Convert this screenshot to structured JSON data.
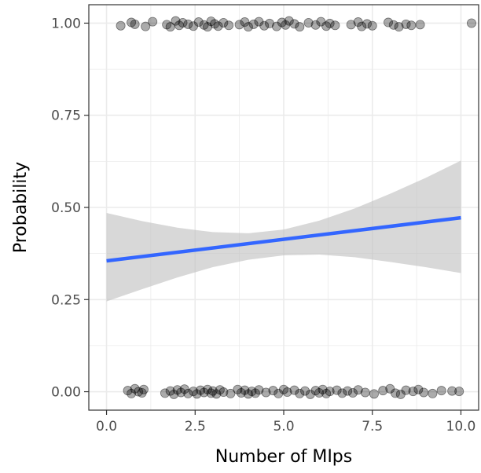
{
  "chart_data": {
    "type": "scatter",
    "title": "",
    "xlabel": "Number of MIps",
    "ylabel": "Probability",
    "xlim": [
      -0.5,
      10.5
    ],
    "ylim": [
      -0.05,
      1.05
    ],
    "x_ticks": [
      0,
      2.5,
      5,
      7.5,
      10
    ],
    "x_tick_labels": [
      "0.0",
      "2.5",
      "5.0",
      "7.5",
      "10.0"
    ],
    "y_ticks": [
      0,
      0.25,
      0.5,
      0.75,
      1
    ],
    "y_tick_labels": [
      "0.00",
      "0.25",
      "0.50",
      "0.75",
      "1.00"
    ],
    "grid": true,
    "legend": "none",
    "colors": {
      "points": "#000000",
      "trend_line": "#3366FF",
      "confidence_band": "#BEBEBE",
      "grid": "#EBEBEB",
      "border": "#333333"
    },
    "points": [
      {
        "x": 0.4,
        "y": 0.993
      },
      {
        "x": 0.7,
        "y": 1.002
      },
      {
        "x": 0.8,
        "y": 0.997
      },
      {
        "x": 1.1,
        "y": 0.991
      },
      {
        "x": 1.3,
        "y": 1.004
      },
      {
        "x": 1.7,
        "y": 0.996
      },
      {
        "x": 1.8,
        "y": 0.99
      },
      {
        "x": 1.95,
        "y": 1.006
      },
      {
        "x": 2.05,
        "y": 0.994
      },
      {
        "x": 2.15,
        "y": 1.001
      },
      {
        "x": 2.3,
        "y": 0.997
      },
      {
        "x": 2.45,
        "y": 0.992
      },
      {
        "x": 2.6,
        "y": 1.003
      },
      {
        "x": 2.75,
        "y": 0.995
      },
      {
        "x": 2.85,
        "y": 0.99
      },
      {
        "x": 2.95,
        "y": 1.005
      },
      {
        "x": 3.05,
        "y": 0.998
      },
      {
        "x": 3.15,
        "y": 0.992
      },
      {
        "x": 3.3,
        "y": 1.001
      },
      {
        "x": 3.45,
        "y": 0.994
      },
      {
        "x": 3.75,
        "y": 0.996
      },
      {
        "x": 3.9,
        "y": 1.003
      },
      {
        "x": 4.0,
        "y": 0.99
      },
      {
        "x": 4.15,
        "y": 0.997
      },
      {
        "x": 4.3,
        "y": 1.004
      },
      {
        "x": 4.45,
        "y": 0.993
      },
      {
        "x": 4.6,
        "y": 0.999
      },
      {
        "x": 4.8,
        "y": 0.991
      },
      {
        "x": 4.95,
        "y": 1.002
      },
      {
        "x": 5.05,
        "y": 0.995
      },
      {
        "x": 5.15,
        "y": 1.006
      },
      {
        "x": 5.3,
        "y": 0.998
      },
      {
        "x": 5.45,
        "y": 0.99
      },
      {
        "x": 5.7,
        "y": 1.001
      },
      {
        "x": 5.9,
        "y": 0.995
      },
      {
        "x": 6.05,
        "y": 1.004
      },
      {
        "x": 6.2,
        "y": 0.992
      },
      {
        "x": 6.3,
        "y": 0.999
      },
      {
        "x": 6.45,
        "y": 0.994
      },
      {
        "x": 6.9,
        "y": 0.996
      },
      {
        "x": 7.1,
        "y": 1.003
      },
      {
        "x": 7.2,
        "y": 0.991
      },
      {
        "x": 7.35,
        "y": 0.998
      },
      {
        "x": 7.5,
        "y": 0.993
      },
      {
        "x": 7.95,
        "y": 1.002
      },
      {
        "x": 8.1,
        "y": 0.995
      },
      {
        "x": 8.25,
        "y": 0.99
      },
      {
        "x": 8.45,
        "y": 0.997
      },
      {
        "x": 8.6,
        "y": 0.994
      },
      {
        "x": 8.85,
        "y": 0.996
      },
      {
        "x": 10.3,
        "y": 1.0
      },
      {
        "x": 0.6,
        "y": 0.003
      },
      {
        "x": 0.7,
        "y": -0.005
      },
      {
        "x": 0.8,
        "y": 0.008
      },
      {
        "x": 0.9,
        "y": 0.0
      },
      {
        "x": 1.0,
        "y": -0.003
      },
      {
        "x": 1.05,
        "y": 0.006
      },
      {
        "x": 1.65,
        "y": -0.004
      },
      {
        "x": 1.8,
        "y": 0.002
      },
      {
        "x": 1.9,
        "y": -0.007
      },
      {
        "x": 2.0,
        "y": 0.005
      },
      {
        "x": 2.1,
        "y": -0.002
      },
      {
        "x": 2.2,
        "y": 0.007
      },
      {
        "x": 2.3,
        "y": -0.005
      },
      {
        "x": 2.45,
        "y": 0.001
      },
      {
        "x": 2.55,
        "y": -0.006
      },
      {
        "x": 2.65,
        "y": 0.004
      },
      {
        "x": 2.75,
        "y": -0.002
      },
      {
        "x": 2.85,
        "y": 0.006
      },
      {
        "x": 2.95,
        "y": -0.004
      },
      {
        "x": 3.0,
        "y": 0.002
      },
      {
        "x": 3.1,
        "y": -0.006
      },
      {
        "x": 3.2,
        "y": 0.005
      },
      {
        "x": 3.3,
        "y": -0.001
      },
      {
        "x": 3.5,
        "y": -0.005
      },
      {
        "x": 3.7,
        "y": 0.006
      },
      {
        "x": 3.8,
        "y": -0.003
      },
      {
        "x": 3.9,
        "y": 0.004
      },
      {
        "x": 4.0,
        "y": -0.006
      },
      {
        "x": 4.1,
        "y": 0.001
      },
      {
        "x": 4.2,
        "y": -0.004
      },
      {
        "x": 4.3,
        "y": 0.005
      },
      {
        "x": 4.5,
        "y": -0.002
      },
      {
        "x": 4.7,
        "y": 0.003
      },
      {
        "x": 4.85,
        "y": -0.005
      },
      {
        "x": 5.0,
        "y": 0.006
      },
      {
        "x": 5.1,
        "y": -0.001
      },
      {
        "x": 5.3,
        "y": 0.004
      },
      {
        "x": 5.45,
        "y": -0.005
      },
      {
        "x": 5.6,
        "y": 0.002
      },
      {
        "x": 5.75,
        "y": -0.007
      },
      {
        "x": 5.9,
        "y": 0.003
      },
      {
        "x": 6.0,
        "y": -0.003
      },
      {
        "x": 6.1,
        "y": 0.006
      },
      {
        "x": 6.2,
        "y": -0.005
      },
      {
        "x": 6.3,
        "y": 0.001
      },
      {
        "x": 6.5,
        "y": 0.004
      },
      {
        "x": 6.65,
        "y": -0.004
      },
      {
        "x": 6.8,
        "y": 0.002
      },
      {
        "x": 6.95,
        "y": -0.003
      },
      {
        "x": 7.1,
        "y": 0.005
      },
      {
        "x": 7.3,
        "y": -0.002
      },
      {
        "x": 7.55,
        "y": -0.006
      },
      {
        "x": 7.8,
        "y": 0.003
      },
      {
        "x": 8.0,
        "y": 0.008
      },
      {
        "x": 8.15,
        "y": -0.004
      },
      {
        "x": 8.3,
        "y": -0.007
      },
      {
        "x": 8.45,
        "y": 0.004
      },
      {
        "x": 8.65,
        "y": 0.001
      },
      {
        "x": 8.8,
        "y": 0.006
      },
      {
        "x": 8.95,
        "y": -0.002
      },
      {
        "x": 9.2,
        "y": -0.005
      },
      {
        "x": 9.45,
        "y": 0.003
      },
      {
        "x": 9.75,
        "y": 0.002
      },
      {
        "x": 9.95,
        "y": 0.001
      }
    ],
    "trend_line": [
      {
        "x": 0,
        "y": 0.355
      },
      {
        "x": 10,
        "y": 0.472
      }
    ],
    "confidence_band": [
      {
        "x": 0,
        "lower": 0.245,
        "upper": 0.485
      },
      {
        "x": 1,
        "lower": 0.278,
        "upper": 0.463
      },
      {
        "x": 2,
        "lower": 0.31,
        "upper": 0.445
      },
      {
        "x": 3,
        "lower": 0.338,
        "upper": 0.433
      },
      {
        "x": 4,
        "lower": 0.358,
        "upper": 0.43
      },
      {
        "x": 5,
        "lower": 0.37,
        "upper": 0.44
      },
      {
        "x": 6,
        "lower": 0.372,
        "upper": 0.464
      },
      {
        "x": 7,
        "lower": 0.365,
        "upper": 0.497
      },
      {
        "x": 8,
        "lower": 0.352,
        "upper": 0.537
      },
      {
        "x": 9,
        "lower": 0.338,
        "upper": 0.58
      },
      {
        "x": 10,
        "lower": 0.322,
        "upper": 0.627
      }
    ]
  }
}
